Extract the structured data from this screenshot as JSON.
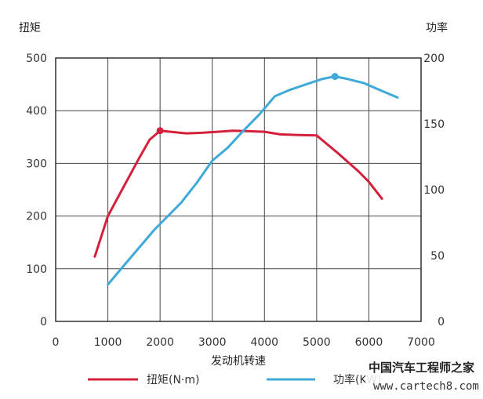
{
  "chart_data": {
    "type": "line",
    "title": "",
    "xlabel": "发动机转速",
    "ylabel_left": "扭矩",
    "ylabel_right": "功率",
    "xlim": [
      0,
      7000
    ],
    "ylim_left": [
      0,
      500
    ],
    "ylim_right": [
      0,
      200
    ],
    "x_ticks": [
      "0",
      "1000",
      "2000",
      "3000",
      "4000",
      "5000",
      "6000",
      "7000"
    ],
    "y_left_ticks": [
      "0",
      "100",
      "200",
      "300",
      "400",
      "500"
    ],
    "y_right_ticks": [
      "0",
      "50",
      "100",
      "150",
      "200"
    ],
    "grid": true,
    "legend_position": "bottom",
    "series": [
      {
        "name": "扭矩(N·m)",
        "axis": "left",
        "color": "#d4203a",
        "x": [
          750,
          1000,
          1300,
          1600,
          1800,
          2000,
          2200,
          2500,
          2800,
          3100,
          3400,
          3700,
          4000,
          4300,
          4600,
          5000,
          5400,
          5800,
          6000,
          6250
        ],
        "y": [
          123,
          200,
          255,
          310,
          345,
          362,
          360,
          357,
          358,
          360,
          362,
          361,
          360,
          355,
          354,
          353,
          320,
          285,
          265,
          233
        ],
        "marker_index": 5
      },
      {
        "name": "功率(KW)",
        "axis": "right",
        "color": "#3fa9d8",
        "x": [
          1000,
          1300,
          1600,
          1900,
          2100,
          2400,
          2700,
          3000,
          3300,
          3600,
          3900,
          4200,
          4500,
          4800,
          5100,
          5350,
          5600,
          5900,
          6250,
          6550
        ],
        "y": [
          28,
          42,
          56,
          70,
          78,
          90,
          105,
          122,
          132,
          145,
          157,
          171,
          176,
          180,
          184,
          186,
          184,
          181,
          175,
          170
        ],
        "marker_index": 15
      }
    ]
  },
  "watermark": {
    "name": "中国汽车工程师之家",
    "url": "www.cartech8.com"
  }
}
